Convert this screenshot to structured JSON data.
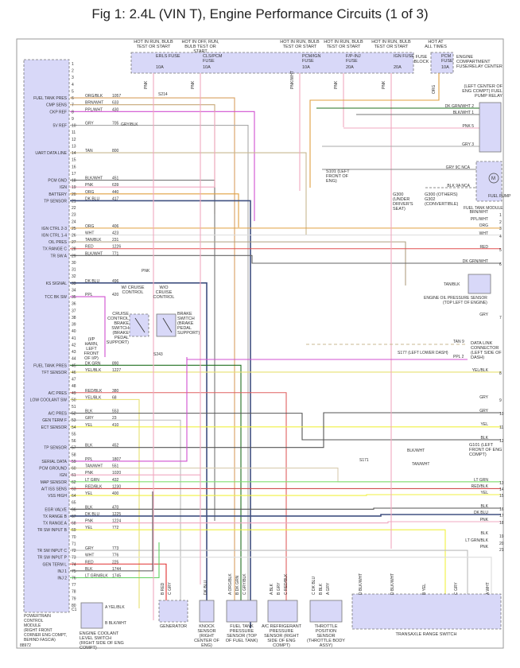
{
  "title": "Fig 1: 2.4L (VIN T), Engine Performance Circuits (1 of 3)",
  "figure_id": "88972",
  "pcm": {
    "name": [
      "POWERTRAIN",
      "CONTROL",
      "MODULE",
      "(RIGHT FRONT",
      "CORNER ENG COMPT,",
      "BEHIND FASCIA)"
    ],
    "pins": [
      {
        "pin": "6",
        "label": "FUEL TANK PRES",
        "wire": "ORG/BLK",
        "circuit": "1057",
        "color": "#d8a060"
      },
      {
        "pin": "7",
        "label": "CMP SENS",
        "wire": "BRN/WHT",
        "circuit": "633",
        "color": "#c8a878"
      },
      {
        "pin": "8",
        "label": "CKP REF",
        "wire": "PPL/WHT",
        "circuit": "430",
        "color": "#d050d0"
      },
      {
        "pin": "10",
        "label": "5V REF",
        "wire": "GRY",
        "circuit": "705",
        "color": "#aaaaaa"
      },
      {
        "pin": "14",
        "label": "UART DATA LINE",
        "wire": "TAN",
        "circuit": "800",
        "color": "#c8b890"
      },
      {
        "pin": "18",
        "label": "PCM GND",
        "wire": "BLK/WHT",
        "circuit": "451",
        "color": "#777777"
      },
      {
        "pin": "19",
        "label": "IGN",
        "wire": "PNK",
        "circuit": "639",
        "color": "#f0a8c0"
      },
      {
        "pin": "20",
        "label": "BATTERY",
        "wire": "ORG",
        "circuit": "440",
        "color": "#e0a040"
      },
      {
        "pin": "21",
        "label": "TP SENSOR",
        "wire": "DK BLU",
        "circuit": "417",
        "color": "#405080"
      },
      {
        "pin": "25",
        "label": "IGN CTRL 2-3",
        "wire": "ORG",
        "circuit": "406",
        "color": "#e0a040"
      },
      {
        "pin": "26",
        "label": "IGN CTRL 1-4",
        "wire": "WHT",
        "circuit": "423",
        "color": "#dddddd"
      },
      {
        "pin": "27",
        "label": "OIL PRES",
        "wire": "TAN/BLK",
        "circuit": "231",
        "color": "#b0a080"
      },
      {
        "pin": "28",
        "label": "TX RANGE C",
        "wire": "RED",
        "circuit": "1226",
        "color": "#e05050"
      },
      {
        "pin": "29",
        "label": "TR SW A",
        "wire": "BLK/WHT",
        "circuit": "771",
        "color": "#666666"
      },
      {
        "pin": "33",
        "label": "KS SIGNAL",
        "wire": "DK BLU",
        "circuit": "496",
        "color": "#405080"
      },
      {
        "pin": "35",
        "label": "TCC BK SW",
        "wire": "PPL",
        "circuit": "420",
        "color": "#d050d0"
      },
      {
        "pin": "45",
        "label": "FUEL TANK PRES",
        "wire": "DK GRN",
        "circuit": "890",
        "color": "#207020"
      },
      {
        "pin": "46",
        "label": "TFT SENSOR",
        "wire": "YEL/BLK",
        "circuit": "1227",
        "color": "#e8e070"
      },
      {
        "pin": "49",
        "label": "A/C PRES",
        "wire": "RED/BLK",
        "circuit": "380",
        "color": "#e06060"
      },
      {
        "pin": "50",
        "label": "LOW COOLANT SW",
        "wire": "YEL/BLK",
        "circuit": "68",
        "color": "#e8e070"
      },
      {
        "pin": "52",
        "label": "A/C PRES",
        "wire": "BLK",
        "circuit": "553",
        "color": "#555555"
      },
      {
        "pin": "53",
        "label": "GEN TERM F",
        "wire": "GRY",
        "circuit": "23",
        "color": "#bbbbbb"
      },
      {
        "pin": "54",
        "label": "ECT SENSOR",
        "wire": "YEL",
        "circuit": "410",
        "color": "#f0f040"
      },
      {
        "pin": "57",
        "label": "TP SENSOR",
        "wire": "BLK",
        "circuit": "452",
        "color": "#555555"
      },
      {
        "pin": "59",
        "label": "SERIAL DATA",
        "wire": "PPL",
        "circuit": "1807",
        "color": "#d050d0"
      },
      {
        "pin": "60",
        "label": "PCM GROUND",
        "wire": "TAN/WHT",
        "circuit": "551",
        "color": "#d8ccb0"
      },
      {
        "pin": "61",
        "label": "IGN",
        "wire": "PNK",
        "circuit": "1020",
        "color": "#f0a8c0"
      },
      {
        "pin": "62",
        "label": "MAP SENSOR",
        "wire": "LT GRN",
        "circuit": "432",
        "color": "#80e070"
      },
      {
        "pin": "63",
        "label": "A/T ISS SENS",
        "wire": "RED/BLK",
        "circuit": "1230",
        "color": "#d05050"
      },
      {
        "pin": "64",
        "label": "VSS HIGH",
        "wire": "YEL",
        "circuit": "400",
        "color": "#f0f040"
      },
      {
        "pin": "66",
        "label": "EGR VALVE",
        "wire": "BLK",
        "circuit": "470",
        "color": "#555555"
      },
      {
        "pin": "67",
        "label": "TX RANGE B",
        "wire": "DK BLU",
        "circuit": "1225",
        "color": "#405080"
      },
      {
        "pin": "68",
        "label": "TX RANGE A",
        "wire": "PNK",
        "circuit": "1224",
        "color": "#f0a8c0"
      },
      {
        "pin": "69",
        "label": "TR SW INPUT B",
        "wire": "YEL",
        "circuit": "772",
        "color": "#f0f040"
      },
      {
        "pin": "72",
        "label": "TR SW INPUT C",
        "wire": "GRY",
        "circuit": "773",
        "color": "#bbbbbb"
      },
      {
        "pin": "73",
        "label": "TR SW INPUT P",
        "wire": "WHT",
        "circuit": "776",
        "color": "#dddddd"
      },
      {
        "pin": "74",
        "label": "GEN TERM L",
        "wire": "RED",
        "circuit": "225",
        "color": "#e03030"
      },
      {
        "pin": "75",
        "label": "INJ 1",
        "wire": "BLK",
        "circuit": "1744",
        "color": "#555555"
      },
      {
        "pin": "76",
        "label": "INJ 2",
        "wire": "LT GRN/BLK",
        "circuit": "1745",
        "color": "#60d060"
      }
    ],
    "empty_pins": [
      "1",
      "2",
      "3",
      "4",
      "5",
      "9",
      "11",
      "12",
      "13",
      "15",
      "16",
      "17",
      "22",
      "23",
      "24",
      "30",
      "31",
      "32",
      "34",
      "36",
      "37",
      "38",
      "39",
      "40",
      "41",
      "42",
      "43",
      "44",
      "47",
      "48",
      "51",
      "55",
      "56",
      "58",
      "65",
      "70",
      "71",
      "77",
      "78",
      "79",
      "80",
      "C1"
    ]
  },
  "fuses": {
    "left": [
      {
        "hot": "HOT IN RUN, BULB TEST OR START",
        "name": "ERLS FUSE",
        "rating": "10A",
        "wire": "PNK"
      },
      {
        "hot": "HOT IN OFF, RUN, BULB TEST OR START",
        "name": "CLS/PCM FUSE",
        "rating": "10A",
        "wire": "PNK"
      },
      {
        "hot": "HOT IN RUN, BULB TEST OR START",
        "name": "PCM/IGN FUSE",
        "rating": "10A",
        "wire": "PNK/WHT"
      },
      {
        "hot": "HOT IN RUN, BULB TEST OR START",
        "name": "F/P-INJ FUSE",
        "rating": "20A",
        "wire": "PNK"
      },
      {
        "hot": "HOT IN RUN, BULB TEST OR START",
        "name": "IGN FUSE",
        "rating": "20A",
        "wire": "PNK"
      }
    ],
    "block_label": "FUSE BLOCK",
    "right": {
      "hot": "HOT AT ALL TIMES",
      "name": "PCM FUSE",
      "rating": "10A",
      "wire": "ORG",
      "center": "ENGINE COMPARTMENT FUSE/RELAY CENTER"
    }
  },
  "splices": {
    "s214": "S214",
    "s101": "S101 (LEFT FRONT OF ENG)",
    "s243": "S243",
    "s177": "S177 (LEFT LOWER DASH)",
    "s171": "S171",
    "g300": "G300 (UNDER DRIVER'S SEAT)",
    "g300b": "G300 (OTHERS)",
    "g302": "G302 (CONVERTIBLE)",
    "g101": "G101 (LEFT FRONT OF ENG COMPT)",
    "pnk": "PNK",
    "ppl": "PPL",
    "blk": "BLK",
    "blkwht": "BLK/WHT",
    "tanwht": "TAN/WHT",
    "grybk": "GRY/BLK"
  },
  "relay": {
    "title": "(LEFT CENTER OF ENG COMPT) FUEL PUMP RELAY",
    "pins": [
      {
        "n": "2",
        "w": "DK GRN/WHT"
      },
      {
        "n": "1",
        "w": "BLK/WHT"
      },
      {
        "n": "5",
        "w": "PNK"
      },
      {
        "n": "3",
        "w": "GRY"
      }
    ]
  },
  "fuel_pump": {
    "name": "FUEL PUMP",
    "module": "FUEL TANK MODULE",
    "pins": [
      {
        "n": "9C",
        "w": "GRY",
        "c": "NCA"
      },
      {
        "n": "9A",
        "w": "BLK",
        "c": "NCA"
      }
    ]
  },
  "right_connector": [
    {
      "n": "1",
      "w": "BRN/WHT"
    },
    {
      "n": "2",
      "w": "PPL/WHT"
    },
    {
      "n": "3",
      "w": "ORG"
    },
    {
      "n": "4",
      "w": "WHT"
    },
    {
      "n": "5",
      "w": "RED"
    },
    {
      "n": "6",
      "w": "DK GRN/WHT"
    },
    {
      "n": "7",
      "w": "GRY"
    },
    {
      "n": "8",
      "w": "YEL/BLK"
    },
    {
      "n": "9",
      "w": "GRY"
    },
    {
      "n": "10",
      "w": "GRY"
    },
    {
      "n": "11",
      "w": "YEL"
    },
    {
      "n": "12",
      "w": "BLK"
    },
    {
      "n": "13",
      "w": "LT GRN"
    },
    {
      "n": "14",
      "w": "RED/BLK"
    },
    {
      "n": "15",
      "w": "YEL"
    },
    {
      "n": "16",
      "w": "BLK"
    },
    {
      "n": "17",
      "w": "DK BLU"
    },
    {
      "n": "18",
      "w": "PNK"
    },
    {
      "n": "19",
      "w": "BLK"
    },
    {
      "n": "20",
      "w": "LT GRN/BLK"
    },
    {
      "n": "21",
      "w": "PNK"
    }
  ],
  "oil_sensor": {
    "name": "ENGINE OIL PRESSURE SENSOR",
    "loc": "(TOP LEFT OF ENGINE)",
    "wire": "TAN/BLK"
  },
  "dlc": {
    "name": "DATA LINK CONNECTOR (LEFT SIDE OF DASH)",
    "pins": [
      {
        "n": "9",
        "w": "TAN"
      },
      {
        "n": "2",
        "w": "PPL"
      }
    ]
  },
  "brake": {
    "w_cruise": "W/ CRUISE CONTROL",
    "wo_cruise": "W/O CRUISE CONTROL",
    "switch1": "CRUISE CONTROL BRAKE SWITCH (BRAKE PEDAL SUPPORT)",
    "switch2": "BRAKE SWITCH (BRAKE PEDAL SUPPORT)",
    "ip": "(I/P HARN, LEFT FRONT OF I/P)",
    "c2": "C2"
  },
  "bottom": {
    "coolant": {
      "name": "ENGINE COOLANT LEVEL SWITCH (RIGHT SIDE OF ENG COMPT)",
      "a": "YEL/BLK",
      "b": "BLK/WHT"
    },
    "generator": {
      "name": "GENERATOR",
      "w": [
        "B RED",
        "C GRY"
      ]
    },
    "knock": {
      "name": "KNOCK SENSOR (RIGHT CENTER OF ENG)",
      "w": [
        "DK BLU"
      ]
    },
    "fuel_tank": {
      "name": "FUEL TANK PRESSURE SENSOR (TOP OF FUEL TANK)",
      "w": [
        "A ORG/BLK",
        "B DK GRN",
        "C GRY/BLK"
      ]
    },
    "ac": {
      "name": "A/C REFRIGERANT PRESSURE SENSOR (RIGHT SIDE OF ENG COMPT)",
      "w": [
        "A BLK",
        "B GRY",
        "C RED/BLK"
      ]
    },
    "tps": {
      "name": "THROTTLE POSITION SENSOR (THROTTLE BODY ASSY)",
      "w": [
        "C DK BLU",
        "B BLK",
        "A GRY"
      ]
    },
    "trs": {
      "name": "TRANSAXLE RANGE SWITCH",
      "w": [
        "D BLK/WHT",
        "D BLK/WHT",
        "B YEL",
        "C GRY",
        "A WHT"
      ]
    }
  }
}
